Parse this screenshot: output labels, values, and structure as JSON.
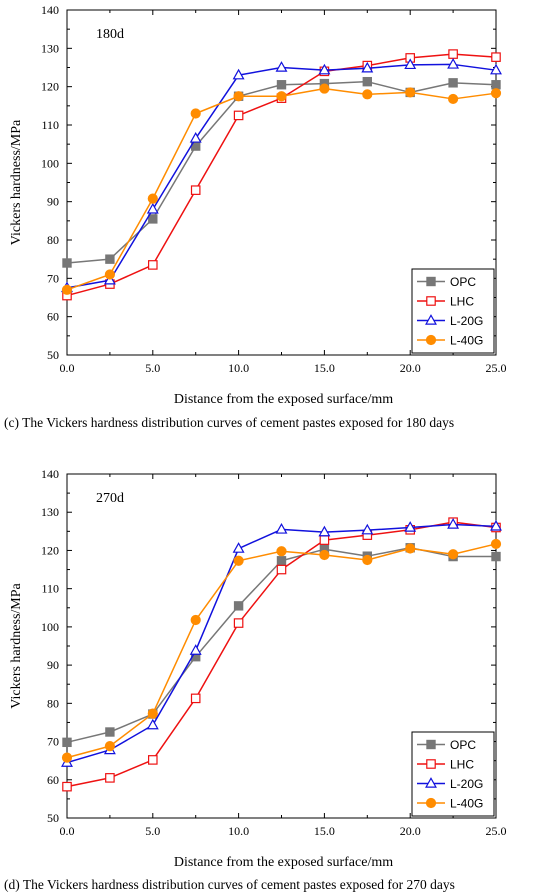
{
  "chart_data": [
    {
      "type": "line",
      "panel_label": "180d",
      "caption": "(c) The Vickers hardness distribution curves of cement pastes exposed for 180 days",
      "xlabel": "Distance from the exposed surface/mm",
      "ylabel": "Vickers hardness/MPa",
      "xlim": [
        0,
        25
      ],
      "ylim": [
        50,
        140
      ],
      "xticks": [
        "0.0",
        "5.0",
        "10.0",
        "15.0",
        "20.0",
        "25.0"
      ],
      "yticks": [
        "50",
        "60",
        "70",
        "80",
        "90",
        "100",
        "110",
        "120",
        "130",
        "140"
      ],
      "legend_position": "bottom-right",
      "grid": false,
      "x": [
        0,
        2.5,
        5,
        7.5,
        10,
        12.5,
        15,
        17.5,
        20,
        22.5,
        25
      ],
      "series": [
        {
          "name": "OPC",
          "color": "#777777",
          "marker": "square-filled",
          "values": [
            74,
            75,
            85.5,
            104.5,
            117.5,
            120.5,
            120.8,
            121.3,
            118.5,
            121,
            120.5
          ]
        },
        {
          "name": "LHC",
          "color": "#ee1111",
          "marker": "square-open",
          "values": [
            65.5,
            68.5,
            73.5,
            93,
            112.5,
            117,
            124,
            125.5,
            127.5,
            128.5,
            127.7
          ]
        },
        {
          "name": "L-20G",
          "color": "#1111dd",
          "marker": "triangle-open",
          "values": [
            67.5,
            69.5,
            88,
            106.5,
            123,
            125,
            124.3,
            124.8,
            125.7,
            125.8,
            124.3
          ]
        },
        {
          "name": "L-40G",
          "color": "#ff8c00",
          "marker": "circle-filled",
          "values": [
            67,
            71,
            90.8,
            113,
            117.5,
            117.5,
            119.5,
            118,
            118.5,
            116.8,
            118.3
          ]
        }
      ]
    },
    {
      "type": "line",
      "panel_label": "270d",
      "caption": "(d) The Vickers hardness distribution curves of cement pastes exposed for 270 days",
      "xlabel": "Distance from the exposed surface/mm",
      "ylabel": "Vickers hardness/MPa",
      "xlim": [
        0,
        25
      ],
      "ylim": [
        50,
        140
      ],
      "xticks": [
        "0.0",
        "5.0",
        "10.0",
        "15.0",
        "20.0",
        "25.0"
      ],
      "yticks": [
        "50",
        "60",
        "70",
        "80",
        "90",
        "100",
        "110",
        "120",
        "130",
        "140"
      ],
      "legend_position": "bottom-right",
      "grid": false,
      "x": [
        0,
        2.5,
        5,
        7.5,
        10,
        12.5,
        15,
        17.5,
        20,
        22.5,
        25
      ],
      "series": [
        {
          "name": "OPC",
          "color": "#777777",
          "marker": "square-filled",
          "values": [
            69.8,
            72.5,
            77.2,
            92.2,
            105.5,
            117.3,
            120.3,
            118.5,
            120.7,
            118.4,
            118.4
          ]
        },
        {
          "name": "LHC",
          "color": "#ee1111",
          "marker": "square-open",
          "values": [
            58.2,
            60.5,
            65.2,
            81.3,
            101,
            115,
            122.7,
            124,
            125.4,
            127.4,
            126
          ]
        },
        {
          "name": "L-20G",
          "color": "#1111dd",
          "marker": "triangle-open",
          "values": [
            64.5,
            67.8,
            74.3,
            93.8,
            120.5,
            125.5,
            124.8,
            125.3,
            126,
            126.8,
            126.3
          ]
        },
        {
          "name": "L-40G",
          "color": "#ff8c00",
          "marker": "circle-filled",
          "values": [
            65.8,
            68.8,
            77.3,
            101.8,
            117.3,
            119.8,
            118.8,
            117.5,
            120.5,
            119,
            121.7
          ]
        }
      ]
    }
  ]
}
